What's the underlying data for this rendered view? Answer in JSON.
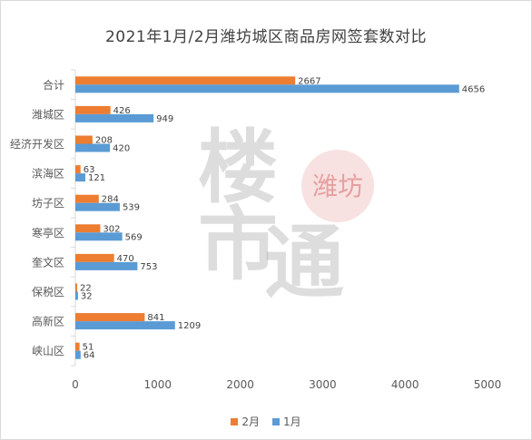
{
  "colors": {
    "feb": "#ED7D31",
    "jan": "#5B9BD5",
    "axis": "#d9d9d9",
    "grid": "#e6e6e6",
    "label": "#595959",
    "watermark_text": "#b0b0b0",
    "watermark_seal": "#f2c8c8"
  },
  "watermark": {
    "seal_text": "潍坊",
    "main_text": "楼市通"
  },
  "chart_data": {
    "type": "bar",
    "orientation": "horizontal",
    "title": "2021年1月/2月潍坊城区商品房网签套数对比",
    "categories": [
      "合计",
      "潍城区",
      "经济开发区",
      "滨海区",
      "坊子区",
      "寒亭区",
      "奎文区",
      "保税区",
      "高新区",
      "峡山区"
    ],
    "series": [
      {
        "name": "2月",
        "values": [
          2667,
          426,
          208,
          63,
          284,
          302,
          470,
          22,
          841,
          51
        ]
      },
      {
        "name": "1月",
        "values": [
          4656,
          949,
          420,
          121,
          539,
          569,
          753,
          32,
          1209,
          64
        ]
      }
    ],
    "xlim": [
      0,
      5000
    ],
    "xticks": [
      "0",
      "1000",
      "2000",
      "3000",
      "4000",
      "5000"
    ],
    "grid": false,
    "legend_position": "bottom"
  }
}
